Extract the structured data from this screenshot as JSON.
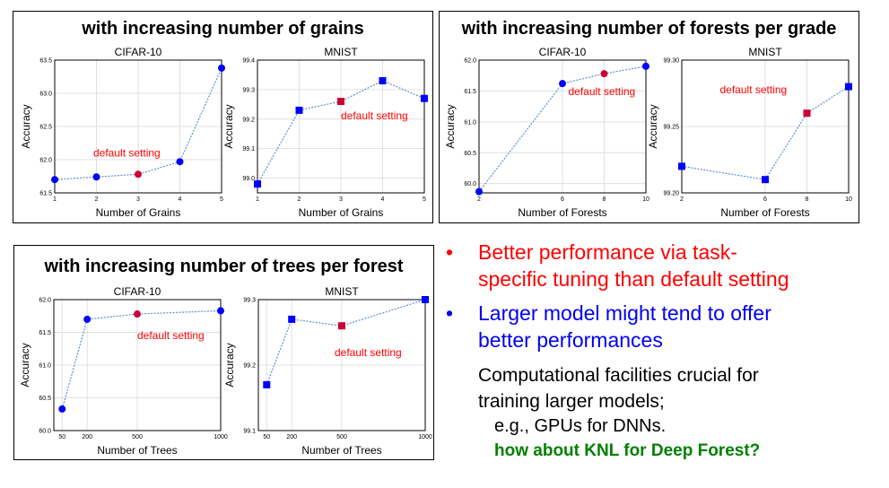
{
  "panels": [
    {
      "title": "with increasing number of grains",
      "charts": [
        {
          "type": "line",
          "title": "CIFAR-10",
          "xlabel": "Number of Grains",
          "ylabel": "Accuracy",
          "x": [
            1,
            2,
            3,
            4,
            5
          ],
          "y": [
            61.7,
            61.74,
            61.78,
            61.97,
            63.38
          ],
          "xticks": [
            "1",
            "2",
            "3",
            "4",
            "5"
          ],
          "yticks": [
            "61.5",
            "62.0",
            "62.5",
            "63.0",
            "63.5"
          ],
          "xlim": [
            1,
            5
          ],
          "ylim": [
            61.5,
            63.5
          ],
          "marker": "circle",
          "highlight_index": 2,
          "annotation": "default setting",
          "grid": true
        },
        {
          "type": "line",
          "title": "MNIST",
          "xlabel": "Number of Grains",
          "ylabel": "Accuracy",
          "x": [
            1,
            2,
            3,
            4,
            5
          ],
          "y": [
            98.98,
            99.23,
            99.26,
            99.33,
            99.27
          ],
          "xticks": [
            "1",
            "2",
            "3",
            "4",
            "5"
          ],
          "yticks": [
            "99.0",
            "99.1",
            "99.2",
            "99.3",
            "99.4"
          ],
          "xlim": [
            1,
            5
          ],
          "ylim": [
            98.95,
            99.4
          ],
          "marker": "square",
          "highlight_index": 2,
          "annotation": "default setting",
          "grid": true
        }
      ]
    },
    {
      "title": "with increasing number of forests per grade",
      "charts": [
        {
          "type": "line",
          "title": "CIFAR-10",
          "xlabel": "Number of Forests",
          "ylabel": "Accuracy",
          "x": [
            2,
            6,
            8,
            10
          ],
          "y": [
            59.87,
            61.62,
            61.78,
            61.9
          ],
          "xticks": [
            "2",
            "6",
            "8",
            "10"
          ],
          "yticks": [
            "60.0",
            "60.5",
            "61.0",
            "61.5",
            "62.0"
          ],
          "xlim": [
            2,
            10
          ],
          "ylim": [
            59.85,
            62.0
          ],
          "marker": "circle",
          "highlight_index": 2,
          "annotation": "default setting",
          "grid": true
        },
        {
          "type": "line",
          "title": "MNIST",
          "xlabel": "Number of Forests",
          "ylabel": "Accuracy",
          "x": [
            2,
            6,
            8,
            10
          ],
          "y": [
            99.22,
            99.21,
            99.26,
            99.28
          ],
          "xticks": [
            "2",
            "6",
            "8",
            "10"
          ],
          "yticks": [
            "99.20",
            "99.25",
            "99.30"
          ],
          "xlim": [
            2,
            10
          ],
          "ylim": [
            99.2,
            99.3
          ],
          "marker": "square",
          "highlight_index": 2,
          "annotation": "default setting",
          "grid": true
        }
      ]
    },
    {
      "title": "with increasing number of trees per forest",
      "charts": [
        {
          "type": "line",
          "title": "CIFAR-10",
          "xlabel": "Number of Trees",
          "ylabel": "Accuracy",
          "x": [
            50,
            200,
            500,
            1000
          ],
          "y": [
            60.33,
            61.7,
            61.78,
            61.83
          ],
          "xticks": [
            "50",
            "200",
            "500",
            "1000"
          ],
          "tick_values": [
            50,
            200,
            500,
            1000
          ],
          "yticks": [
            "60.0",
            "60.5",
            "61.0",
            "61.5",
            "62.0"
          ],
          "xlim": [
            0,
            1000
          ],
          "ylim": [
            60.0,
            62.0
          ],
          "marker": "circle",
          "highlight_index": 2,
          "annotation": "default setting",
          "grid": true
        },
        {
          "type": "line",
          "title": "MNIST",
          "xlabel": "Number of Trees",
          "ylabel": "Accuracy",
          "x": [
            50,
            200,
            500,
            1000
          ],
          "y": [
            99.17,
            99.27,
            99.26,
            99.3
          ],
          "xticks": [
            "50",
            "200",
            "500",
            "1000"
          ],
          "tick_values": [
            50,
            200,
            500,
            1000
          ],
          "yticks": [
            "99.1",
            "99.2",
            "99.3"
          ],
          "xlim": [
            0,
            1000
          ],
          "ylim": [
            99.1,
            99.3
          ],
          "marker": "square",
          "highlight_index": 2,
          "annotation": "default setting",
          "grid": true
        }
      ]
    }
  ],
  "bullets": {
    "red_point": "Better performance via task-specific tuning than default setting",
    "red_point_line1": "Better performance via task-",
    "red_point_line2": "specific tuning than default setting",
    "blue_point_line1": "Larger model might tend to offer",
    "blue_point_line2": "better performances",
    "plain_line1": "Computational facilities crucial for",
    "plain_line2": "training larger models;",
    "example": "e.g., GPUs for DNNs.",
    "question": "how about KNL for Deep Forest?",
    "bullet_symbol": "•"
  },
  "colors": {
    "series": "#0000ff",
    "line": "#5b8fd6",
    "highlight": "#cc0033",
    "annotation": "#ff0000",
    "grid": "#e0e0e0"
  }
}
